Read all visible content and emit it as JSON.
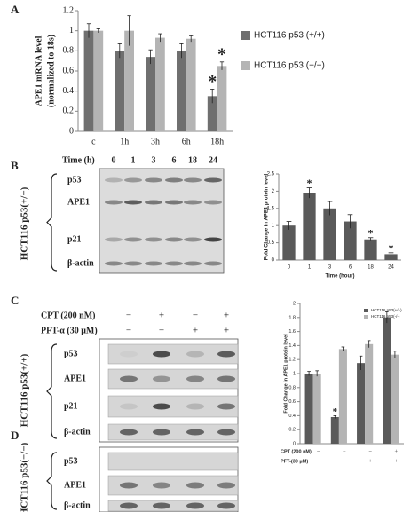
{
  "panel_labels": [
    "A",
    "B",
    "C",
    "D"
  ],
  "chart_data": [
    {
      "type": "bar",
      "ylabel": [
        "APE1 mRNA level",
        "(normalized to 18s)"
      ],
      "categories": [
        "c",
        "1h",
        "3h",
        "6h",
        "18h"
      ],
      "series": [
        {
          "name": "HCT116 p53 (+/+)",
          "color": "#6f6f6f",
          "values": [
            1.0,
            0.8,
            0.74,
            0.8,
            0.35
          ],
          "errors": [
            0.07,
            0.07,
            0.07,
            0.07,
            0.07
          ],
          "annotations": [
            null,
            null,
            null,
            null,
            "*"
          ]
        },
        {
          "name": "HCT116 p53 (−/−)",
          "color": "#b4b4b4",
          "values": [
            1.0,
            1.0,
            0.93,
            0.92,
            0.65
          ],
          "errors": [
            0.02,
            0.15,
            0.04,
            0.03,
            0.04
          ],
          "annotations": [
            null,
            null,
            null,
            null,
            "*"
          ]
        }
      ],
      "ylim": [
        0,
        1.2
      ],
      "yticks": [
        0,
        0.2,
        0.4,
        0.6,
        0.8,
        1,
        1.2
      ],
      "legend": "right"
    },
    {
      "type": "bar",
      "ylabel": [
        "Fold Change in APE1 protein level"
      ],
      "xlabel": "Time (hour)",
      "categories": [
        "0",
        "1",
        "3",
        "6",
        "18",
        "24"
      ],
      "color": "#5a5a5a",
      "values": [
        1.0,
        1.95,
        1.5,
        1.12,
        0.6,
        0.17
      ],
      "errors": [
        0.12,
        0.15,
        0.2,
        0.2,
        0.05,
        0.04
      ],
      "annotations": [
        null,
        "*",
        null,
        null,
        "*",
        "*"
      ],
      "ylim": [
        0,
        2.5
      ],
      "yticks": [
        0,
        0.5,
        1,
        1.5,
        2,
        2.5
      ]
    },
    {
      "type": "bar",
      "ylabel": [
        "Fold Change in APE1 protein level"
      ],
      "categories": [
        null,
        null,
        null,
        null
      ],
      "series": [
        {
          "name": "HCT116 p53(+/+)",
          "color": "#5a5a5a",
          "values": [
            1.0,
            0.38,
            1.15,
            1.8
          ],
          "errors": [
            0.03,
            0.02,
            0.1,
            0.08
          ],
          "annotations": [
            null,
            "*",
            null,
            null
          ]
        },
        {
          "name": "HCT116 p53(-/-)",
          "color": "#b4b4b4",
          "values": [
            1.0,
            1.35,
            1.42,
            1.27
          ],
          "errors": [
            0.04,
            0.03,
            0.05,
            0.05
          ],
          "annotations": [
            null,
            null,
            null,
            null
          ]
        }
      ],
      "conditions": [
        {
          "name": "CPT (200 nM)",
          "signs": [
            "−",
            "+",
            "−",
            "+"
          ]
        },
        {
          "name": "PFT-(30 μM)",
          "signs": [
            "−",
            "−",
            "+",
            "+"
          ]
        }
      ],
      "ylim": [
        0,
        2
      ],
      "yticks": [
        0,
        0.2,
        0.4,
        0.6,
        0.8,
        1,
        1.2,
        1.4,
        1.6,
        1.8,
        2
      ],
      "legend": "upper right"
    }
  ],
  "blot_b": {
    "header": "Time (h)",
    "lanes": [
      "0",
      "1",
      "3",
      "6",
      "18",
      "24"
    ],
    "rows": [
      "p53",
      "APE1",
      "p21",
      "β-actin"
    ],
    "cell_line": "HCT116 p53(+/+)"
  },
  "blot_c": {
    "conditions": [
      {
        "name": "CPT (200 nM)",
        "signs": [
          "−",
          "+",
          "−",
          "+"
        ]
      },
      {
        "name": "PFT-α (30 μM)",
        "signs": [
          "−",
          "−",
          "+",
          "+"
        ]
      }
    ],
    "rows": [
      "p53",
      "APE1",
      "p21",
      "β-actin"
    ],
    "cell_line": "HCT116 p53(+/+)"
  },
  "blot_d": {
    "rows": [
      "p53",
      "APE1",
      "β-actin"
    ],
    "cell_line": "HCT116 p53(−/−)"
  }
}
